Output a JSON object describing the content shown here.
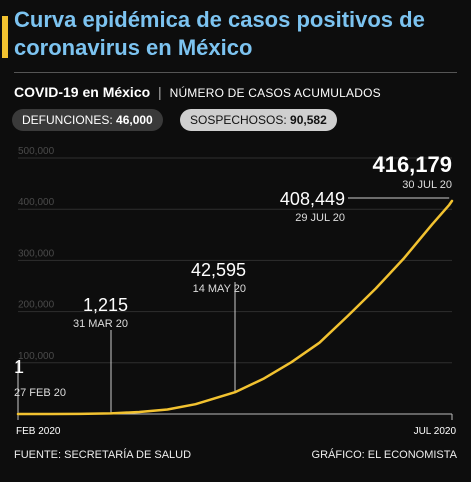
{
  "header": {
    "title": "Curva epidémica de casos positivos de coronavirus en México",
    "subtitle_main": "COVID-19 en México",
    "subtitle_separator": "|",
    "subtitle_detail": "NÚMERO DE CASOS ACUMULADOS",
    "accent_color": "#f2c230",
    "title_color": "#7cc3f0"
  },
  "badges": {
    "deaths_label": "DEFUNCIONES:",
    "deaths_value": "46,000",
    "suspects_label": "SOSPECHOSOS:",
    "suspects_value": "90,582"
  },
  "chart_data": {
    "type": "line",
    "line_color": "#f2c230",
    "yticks": [
      100000,
      200000,
      300000,
      400000,
      500000
    ],
    "ytick_labels": [
      "100,000",
      "200,000",
      "300,000",
      "400,000",
      "500,000"
    ],
    "ylim": [
      0,
      500000
    ],
    "xlim": [
      "2020-02-27",
      "2020-07-30"
    ],
    "x_axis_labels": [
      {
        "date": "2020-02-27",
        "text": "FEB 2020"
      },
      {
        "date": "2020-07-30",
        "text": "JUL 2020"
      }
    ],
    "series": [
      {
        "points": [
          [
            "2020-02-27",
            1
          ],
          [
            "2020-03-10",
            7
          ],
          [
            "2020-03-20",
            164
          ],
          [
            "2020-03-31",
            1215
          ],
          [
            "2020-04-10",
            3844
          ],
          [
            "2020-04-20",
            8772
          ],
          [
            "2020-04-30",
            19224
          ],
          [
            "2020-05-14",
            42595
          ],
          [
            "2020-05-24",
            68620
          ],
          [
            "2020-06-03",
            101238
          ],
          [
            "2020-06-13",
            139196
          ],
          [
            "2020-06-23",
            191410
          ],
          [
            "2020-07-03",
            245251
          ],
          [
            "2020-07-13",
            304435
          ],
          [
            "2020-07-23",
            370712
          ],
          [
            "2020-07-29",
            408449
          ],
          [
            "2020-07-30",
            416179
          ]
        ]
      }
    ],
    "annotations": [
      {
        "value": "1",
        "date_label": "27 FEB 20",
        "date": "2020-02-27",
        "y": 1
      },
      {
        "value": "1,215",
        "date_label": "31 MAR 20",
        "date": "2020-03-31",
        "y": 1215
      },
      {
        "value": "42,595",
        "date_label": "14 MAY 20",
        "date": "2020-05-14",
        "y": 42595
      },
      {
        "value": "408,449",
        "date_label": "29 JUL 20",
        "date": "2020-07-29",
        "y": 408449
      },
      {
        "value": "416,179",
        "date_label": "30 JUL 20",
        "date": "2020-07-30",
        "y": 416179
      }
    ]
  },
  "footer": {
    "source": "FUENTE: SECRETARÍA DE SALUD",
    "credit": "GRÁFICO: EL ECONOMISTA"
  }
}
